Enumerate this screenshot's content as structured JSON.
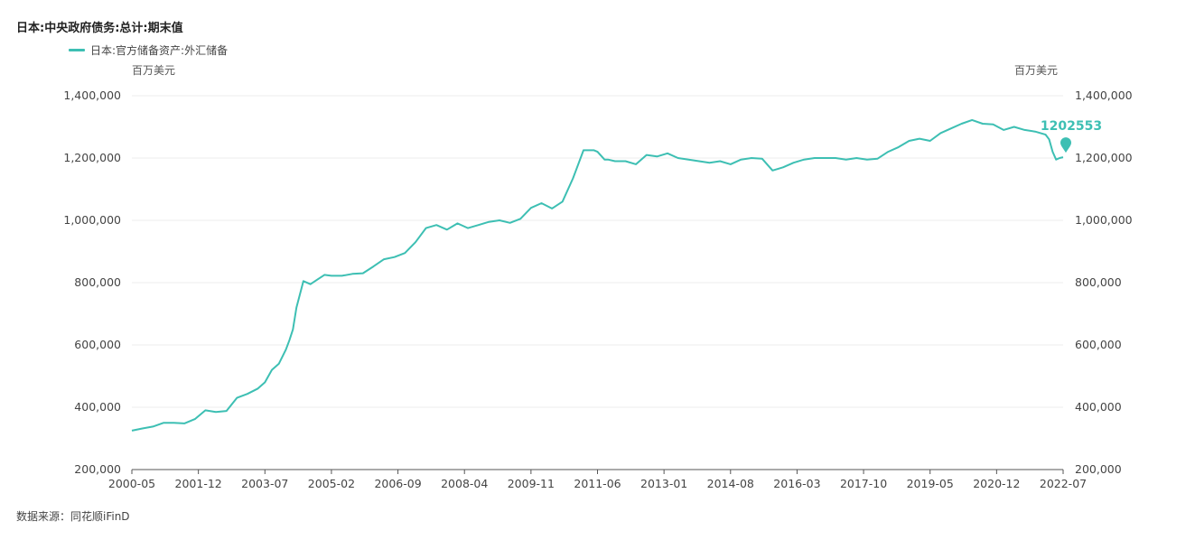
{
  "chart_data": {
    "type": "line",
    "title": "日本:中央政府债务:总计:期末值",
    "legend": [
      "日本:官方储备资产:外汇储备"
    ],
    "unit_left": "百万美元",
    "unit_right": "百万美元",
    "ylim": [
      200000,
      1400000
    ],
    "y_ticks": [
      "1,400,000",
      "1,200,000",
      "1,000,000",
      "800,000",
      "600,000",
      "400,000",
      "200,000"
    ],
    "x_ticks": [
      "2000-05",
      "2001-12",
      "2003-07",
      "2005-02",
      "2006-09",
      "2008-04",
      "2009-11",
      "2011-06",
      "2013-01",
      "2014-08",
      "2016-03",
      "2017-10",
      "2019-05",
      "2020-12",
      "2022-07"
    ],
    "last_value_label": "1202553",
    "color": "#3dbfb3",
    "series": [
      {
        "name": "日本:官方储备资产:外汇储备",
        "x": [
          "2000-05",
          "2000-08",
          "2000-11",
          "2001-02",
          "2001-05",
          "2001-08",
          "2001-11",
          "2002-02",
          "2002-05",
          "2002-08",
          "2002-11",
          "2003-02",
          "2003-05",
          "2003-07",
          "2003-09",
          "2003-11",
          "2004-01",
          "2004-02",
          "2004-03",
          "2004-04",
          "2004-06",
          "2004-08",
          "2004-10",
          "2004-12",
          "2005-02",
          "2005-05",
          "2005-08",
          "2005-11",
          "2006-02",
          "2006-05",
          "2006-08",
          "2006-11",
          "2007-02",
          "2007-05",
          "2007-08",
          "2007-11",
          "2008-02",
          "2008-05",
          "2008-08",
          "2008-11",
          "2009-02",
          "2009-05",
          "2009-08",
          "2009-11",
          "2010-02",
          "2010-05",
          "2010-08",
          "2010-11",
          "2011-02",
          "2011-05",
          "2011-06",
          "2011-08",
          "2011-09",
          "2011-11",
          "2012-02",
          "2012-05",
          "2012-08",
          "2012-11",
          "2013-02",
          "2013-05",
          "2013-08",
          "2013-11",
          "2014-02",
          "2014-05",
          "2014-08",
          "2014-11",
          "2015-02",
          "2015-05",
          "2015-08",
          "2015-11",
          "2016-02",
          "2016-05",
          "2016-08",
          "2016-11",
          "2017-02",
          "2017-05",
          "2017-08",
          "2017-11",
          "2018-02",
          "2018-05",
          "2018-08",
          "2018-11",
          "2019-02",
          "2019-05",
          "2019-08",
          "2019-11",
          "2020-02",
          "2020-05",
          "2020-08",
          "2020-11",
          "2021-02",
          "2021-05",
          "2021-08",
          "2021-11",
          "2022-02",
          "2022-03",
          "2022-04",
          "2022-05",
          "2022-06",
          "2022-07"
        ],
        "values": [
          325000,
          332000,
          338000,
          350000,
          350000,
          348000,
          362000,
          390000,
          385000,
          388000,
          430000,
          443000,
          460000,
          480000,
          520000,
          540000,
          585000,
          615000,
          650000,
          720000,
          805000,
          795000,
          810000,
          825000,
          822000,
          822000,
          828000,
          830000,
          852000,
          875000,
          882000,
          895000,
          930000,
          975000,
          985000,
          970000,
          990000,
          975000,
          985000,
          995000,
          1000000,
          992000,
          1005000,
          1040000,
          1055000,
          1038000,
          1060000,
          1135000,
          1225000,
          1225000,
          1220000,
          1195000,
          1195000,
          1190000,
          1190000,
          1180000,
          1210000,
          1205000,
          1215000,
          1200000,
          1195000,
          1190000,
          1185000,
          1190000,
          1180000,
          1195000,
          1200000,
          1198000,
          1160000,
          1170000,
          1185000,
          1195000,
          1200000,
          1200000,
          1200000,
          1195000,
          1200000,
          1195000,
          1198000,
          1220000,
          1235000,
          1255000,
          1262000,
          1255000,
          1280000,
          1295000,
          1310000,
          1322000,
          1310000,
          1308000,
          1290000,
          1300000,
          1290000,
          1285000,
          1275000,
          1260000,
          1220000,
          1195000,
          1200000,
          1202553
        ]
      }
    ]
  },
  "source_text": "数据来源：同花顺iFinD"
}
